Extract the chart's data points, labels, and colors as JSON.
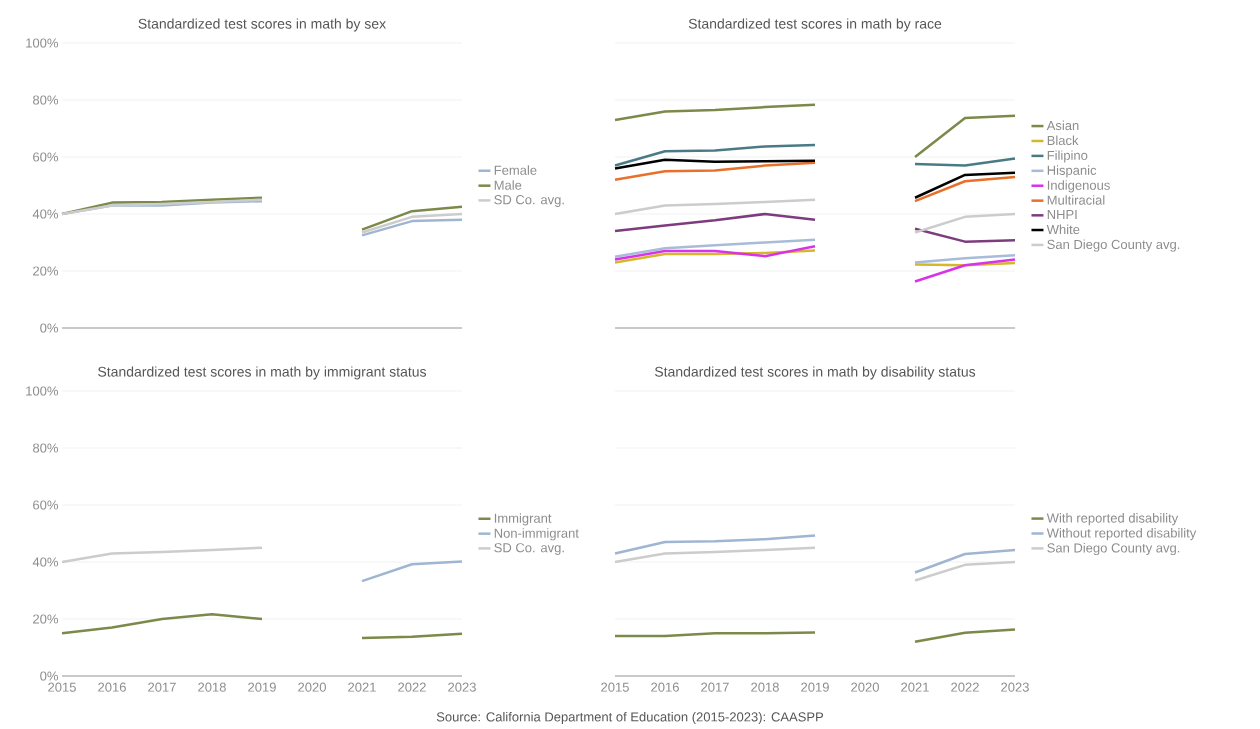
{
  "chart_data": [
    {
      "type": "line",
      "title": "Standardized test scores in math by sex",
      "x": [
        2015,
        2016,
        2017,
        2018,
        2019,
        2020,
        2021,
        2022,
        2023
      ],
      "xlim": [
        2015,
        2023
      ],
      "xticks": [
        2015,
        2016,
        2017,
        2018,
        2019,
        2020,
        2021,
        2022,
        2023
      ],
      "ylim": [
        0,
        100
      ],
      "yticks": [
        {
          "value": 0,
          "label": "0%"
        },
        {
          "value": 20,
          "label": "20%"
        },
        {
          "value": 40,
          "label": "40%"
        },
        {
          "value": 60,
          "label": "60%"
        },
        {
          "value": 80,
          "label": "80%"
        },
        {
          "value": 100,
          "label": "100%"
        }
      ],
      "grid": "y",
      "legend": "right",
      "tick_labels": "y",
      "series": [
        {
          "name": "Female",
          "color": "#9fb6d2",
          "values": [
            40,
            43,
            43,
            44,
            44.5,
            null,
            32.5,
            37.5,
            38
          ]
        },
        {
          "name": "Male",
          "color": "#7b8a4a",
          "values": [
            40,
            44,
            44.2,
            45,
            45.7,
            null,
            34.5,
            41,
            42.5
          ]
        },
        {
          "name": "SD Co. avg.",
          "color": "#cccccc",
          "values": [
            40,
            43,
            43.5,
            44.2,
            45,
            null,
            33.5,
            39,
            40
          ]
        }
      ]
    },
    {
      "type": "line",
      "title": "Standardized test scores in math by race",
      "x": [
        2015,
        2016,
        2017,
        2018,
        2019,
        2020,
        2021,
        2022,
        2023
      ],
      "xlim": [
        2015,
        2023
      ],
      "xticks": [
        2015,
        2016,
        2017,
        2018,
        2019,
        2020,
        2021,
        2022,
        2023
      ],
      "ylim": [
        0,
        100
      ],
      "yticks": [
        {
          "value": 0,
          "label": null
        },
        {
          "value": 20,
          "label": null
        },
        {
          "value": 40,
          "label": null
        },
        {
          "value": 60,
          "label": null
        },
        {
          "value": 80,
          "label": null
        },
        {
          "value": 100,
          "label": null
        }
      ],
      "grid": "y",
      "legend": "right",
      "tick_labels": false,
      "series": [
        {
          "name": "Asian",
          "color": "#7b8a4a",
          "values": [
            73,
            76,
            76.5,
            77.5,
            78.3,
            null,
            60,
            73.7,
            74.5
          ]
        },
        {
          "name": "Black",
          "color": "#d4b82a",
          "values": [
            23,
            26,
            26,
            26.3,
            27.2,
            null,
            22.3,
            22,
            22.8
          ]
        },
        {
          "name": "Filipino",
          "color": "#4a7a85",
          "values": [
            57,
            62,
            62.3,
            63.7,
            64.2,
            null,
            57.5,
            57,
            59.5
          ]
        },
        {
          "name": "Hispanic",
          "color": "#a8bcd8",
          "values": [
            25,
            28,
            29,
            30,
            31,
            null,
            23,
            24.5,
            25.5
          ]
        },
        {
          "name": "Indigenous",
          "color": "#d932e8",
          "values": [
            24,
            27,
            27,
            25.2,
            28.7,
            null,
            16.3,
            22,
            24
          ]
        },
        {
          "name": "Multiracial",
          "color": "#e8702a",
          "values": [
            52,
            55,
            55.3,
            57,
            58,
            null,
            44.5,
            51.5,
            53
          ]
        },
        {
          "name": "NHPI",
          "color": "#7d3c7d",
          "values": [
            34,
            36,
            37.8,
            40,
            38,
            null,
            34.8,
            30.3,
            30.8
          ]
        },
        {
          "name": "White",
          "color": "#000000",
          "values": [
            56,
            59,
            58.3,
            58.5,
            58.7,
            null,
            45.7,
            53.7,
            54.5
          ]
        },
        {
          "name": "San Diego County avg.",
          "color": "#cccccc",
          "values": [
            40,
            43,
            43.5,
            44.2,
            45,
            null,
            33.5,
            39,
            40
          ]
        }
      ]
    },
    {
      "type": "line",
      "title": "Standardized test scores in math by immigrant status",
      "x": [
        2015,
        2016,
        2017,
        2018,
        2019,
        2020,
        2021,
        2022,
        2023
      ],
      "xlim": [
        2015,
        2023
      ],
      "xticks": [
        2015,
        2016,
        2017,
        2018,
        2019,
        2020,
        2021,
        2022,
        2023
      ],
      "ylim": [
        0,
        100
      ],
      "yticks": [
        {
          "value": 0,
          "label": "0%"
        },
        {
          "value": 20,
          "label": "20%"
        },
        {
          "value": 40,
          "label": "40%"
        },
        {
          "value": 60,
          "label": "60%"
        },
        {
          "value": 80,
          "label": "80%"
        },
        {
          "value": 100,
          "label": "100%"
        }
      ],
      "grid": "y",
      "legend": "right",
      "series": [
        {
          "name": "Immigrant",
          "color": "#7b8a4a",
          "values": [
            15,
            17,
            20,
            21.7,
            20,
            null,
            13.3,
            13.8,
            14.8
          ]
        },
        {
          "name": "Non-immigrant",
          "color": "#9fb6d2",
          "values": [
            null,
            null,
            null,
            null,
            null,
            null,
            33.3,
            39.2,
            40.2
          ]
        },
        {
          "name": "SD Co. avg.",
          "color": "#cccccc",
          "values": [
            40,
            43,
            43.5,
            44.2,
            45,
            null,
            null,
            null,
            null
          ]
        }
      ]
    },
    {
      "type": "line",
      "title": "Standardized test scores in math by disability status",
      "x": [
        2015,
        2016,
        2017,
        2018,
        2019,
        2020,
        2021,
        2022,
        2023
      ],
      "xlim": [
        2015,
        2023
      ],
      "xticks": [
        2015,
        2016,
        2017,
        2018,
        2019,
        2020,
        2021,
        2022,
        2023
      ],
      "ylim": [
        0,
        100
      ],
      "yticks": [
        {
          "value": 0,
          "label": null
        },
        {
          "value": 20,
          "label": null
        },
        {
          "value": 40,
          "label": null
        },
        {
          "value": 60,
          "label": null
        },
        {
          "value": 80,
          "label": null
        },
        {
          "value": 100,
          "label": null
        }
      ],
      "grid": "y",
      "legend": "right",
      "tick_labels": "x",
      "annotations": [
        "Source: California Department of Education (2015-2023): CAASPP"
      ],
      "series": [
        {
          "name": "With reported disability",
          "color": "#7b8a4a",
          "values": [
            14,
            14,
            15,
            15,
            15.3,
            null,
            12,
            15.2,
            16.3
          ]
        },
        {
          "name": "Without reported disability",
          "color": "#9fb6d2",
          "values": [
            43,
            47,
            47.3,
            48,
            49.3,
            null,
            36.3,
            42.8,
            44.2
          ]
        },
        {
          "name": "San Diego County avg.",
          "color": "#cccccc",
          "values": [
            40,
            43,
            43.5,
            44.2,
            45,
            null,
            33.5,
            39,
            40
          ]
        }
      ]
    }
  ]
}
